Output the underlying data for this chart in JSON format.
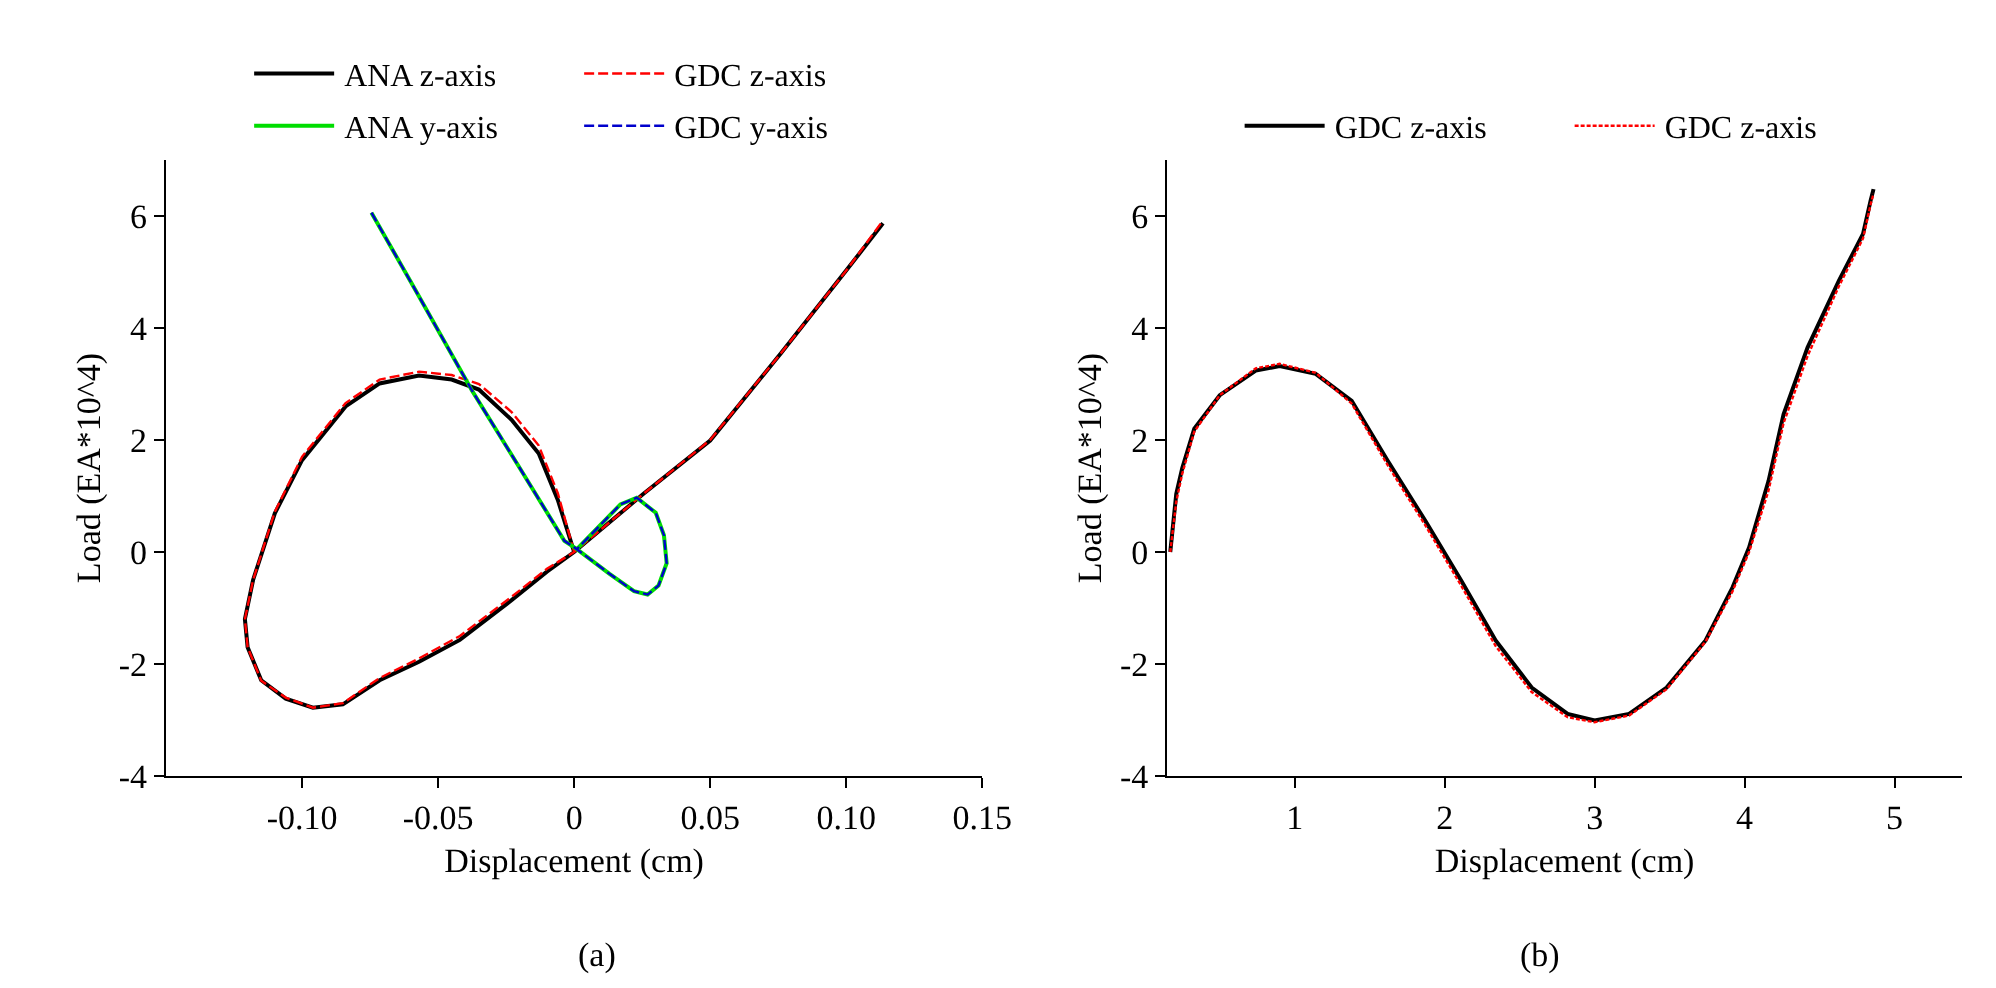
{
  "chart_data": [
    {
      "type": "line",
      "xlabel": "Displacement (cm)",
      "ylabel": "Load (EA*10^4)",
      "annotations": [
        "(a)"
      ],
      "xlim": [
        -0.15,
        0.15
      ],
      "ylim": [
        -4,
        7
      ],
      "xticks": [
        {
          "value": -0.1,
          "label": "-0.10"
        },
        -0.05,
        0,
        0.05,
        {
          "value": 0.1,
          "label": "0.10"
        },
        0.15
      ],
      "yticks": [
        -4,
        -2,
        0,
        2,
        4,
        6
      ],
      "legend": "top",
      "marker": "none",
      "series": [
        {
          "name": "ANA z-axis",
          "color": "#000000",
          "line_style": "solid",
          "x": [
            0,
            -0.006,
            -0.013,
            -0.023,
            -0.035,
            -0.045,
            -0.057,
            -0.0715,
            -0.084,
            -0.1,
            -0.11,
            -0.118,
            -0.121,
            -0.12,
            -0.115,
            -0.106,
            -0.096,
            -0.085,
            -0.0715,
            -0.057,
            -0.042,
            -0.023,
            -0.01,
            0,
            0.0255,
            0.05,
            0.076,
            0.1007,
            0.1135
          ],
          "values": [
            0,
            0.93,
            1.76,
            2.36,
            2.9,
            3.08,
            3.15,
            3.01,
            2.6,
            1.64,
            0.69,
            -0.5,
            -1.2,
            -1.7,
            -2.29,
            -2.62,
            -2.78,
            -2.72,
            -2.29,
            -1.96,
            -1.57,
            -0.86,
            -0.35,
            0,
            1.04,
            1.99,
            3.55,
            5.07,
            5.87
          ]
        },
        {
          "name": "GDC z-axis",
          "color": "#ff0000",
          "line_style": "dashed",
          "x": [
            0,
            -0.006,
            -0.013,
            -0.023,
            -0.035,
            -0.045,
            -0.057,
            -0.0715,
            -0.084,
            -0.1,
            -0.11,
            -0.118,
            -0.121,
            -0.12,
            -0.115,
            -0.106,
            -0.096,
            -0.085,
            -0.0715,
            -0.057,
            -0.042,
            -0.023,
            -0.01,
            0,
            0.0255,
            0.05,
            0.076,
            0.1007,
            0.1135
          ],
          "values": [
            0,
            1.05,
            1.9,
            2.5,
            3.0,
            3.16,
            3.22,
            3.08,
            2.66,
            1.7,
            0.72,
            -0.5,
            -1.2,
            -1.7,
            -2.3,
            -2.6,
            -2.78,
            -2.7,
            -2.25,
            -1.9,
            -1.5,
            -0.8,
            -0.3,
            0,
            1.04,
            2.0,
            3.55,
            5.07,
            5.92
          ]
        },
        {
          "name": "ANA y-axis",
          "color": "#00dd00",
          "line_style": "solid",
          "x": [
            -0.0745,
            -0.06,
            -0.0375,
            -0.02,
            -0.0036,
            0.001,
            0.013,
            0.022,
            0.027,
            0.031,
            0.034,
            0.033,
            0.03,
            0.023,
            0.017,
            0.012,
            0.001
          ],
          "values": [
            6.06,
            4.82,
            2.88,
            1.5,
            0.2,
            0.05,
            -0.39,
            -0.7,
            -0.76,
            -0.6,
            -0.2,
            0.3,
            0.7,
            0.97,
            0.85,
            0.6,
            0.05
          ]
        },
        {
          "name": "GDC y-axis",
          "color": "#0000cc",
          "line_style": "dashed",
          "x": [
            -0.0745,
            -0.06,
            -0.0375,
            -0.02,
            -0.0036,
            0.001,
            0.013,
            0.022,
            0.027,
            0.031,
            0.034,
            0.033,
            0.03,
            0.023,
            0.017,
            0.012,
            0.001
          ],
          "values": [
            6.06,
            4.82,
            2.88,
            1.5,
            0.2,
            0.05,
            -0.39,
            -0.7,
            -0.76,
            -0.6,
            -0.2,
            0.3,
            0.7,
            0.97,
            0.85,
            0.6,
            0.05
          ]
        }
      ]
    },
    {
      "type": "line",
      "xlabel": "Displacement (cm)",
      "ylabel": "Load (EA*10^4)",
      "annotations": [
        "(b)"
      ],
      "xlim": [
        0.15,
        5.45
      ],
      "ylim": [
        -4,
        7
      ],
      "xticks": [
        1,
        2,
        3,
        4,
        5
      ],
      "yticks": [
        -4,
        -2,
        0,
        2,
        4,
        6
      ],
      "legend": "top",
      "marker": "none",
      "series": [
        {
          "name": "GDC z-axis",
          "color": "#000000",
          "line_style": "solid",
          "x": [
            0.17,
            0.21,
            0.25,
            0.33,
            0.5,
            0.74,
            0.9,
            1.14,
            1.38,
            1.62,
            1.87,
            2.11,
            2.34,
            2.58,
            2.82,
            3.0,
            3.23,
            3.48,
            3.74,
            3.92,
            4.03,
            4.16,
            4.26,
            4.42,
            4.63,
            4.79,
            4.84,
            4.86
          ],
          "values": [
            0,
            1.04,
            1.5,
            2.2,
            2.8,
            3.24,
            3.32,
            3.18,
            2.7,
            1.63,
            0.56,
            -0.51,
            -1.58,
            -2.42,
            -2.89,
            -3.01,
            -2.89,
            -2.42,
            -1.58,
            -0.63,
            0.08,
            1.27,
            2.46,
            3.65,
            4.85,
            5.68,
            6.27,
            6.48
          ]
        },
        {
          "name": "GDC z-axis",
          "color": "#ff0000",
          "line_style": "dotted",
          "x": [
            0.17,
            0.21,
            0.25,
            0.33,
            0.5,
            0.74,
            0.9,
            1.14,
            1.38,
            1.62,
            1.87,
            2.11,
            2.34,
            2.58,
            2.82,
            3.0,
            3.23,
            3.48,
            3.74,
            3.92,
            4.03,
            4.16,
            4.26,
            4.42,
            4.63,
            4.79,
            4.84,
            4.86
          ],
          "values": [
            0,
            0.9,
            1.4,
            2.15,
            2.8,
            3.28,
            3.36,
            3.2,
            2.65,
            1.55,
            0.48,
            -0.6,
            -1.68,
            -2.5,
            -2.95,
            -3.04,
            -2.92,
            -2.45,
            -1.6,
            -0.7,
            0.0,
            1.1,
            2.3,
            3.5,
            4.75,
            5.6,
            6.2,
            6.4
          ]
        }
      ]
    }
  ]
}
